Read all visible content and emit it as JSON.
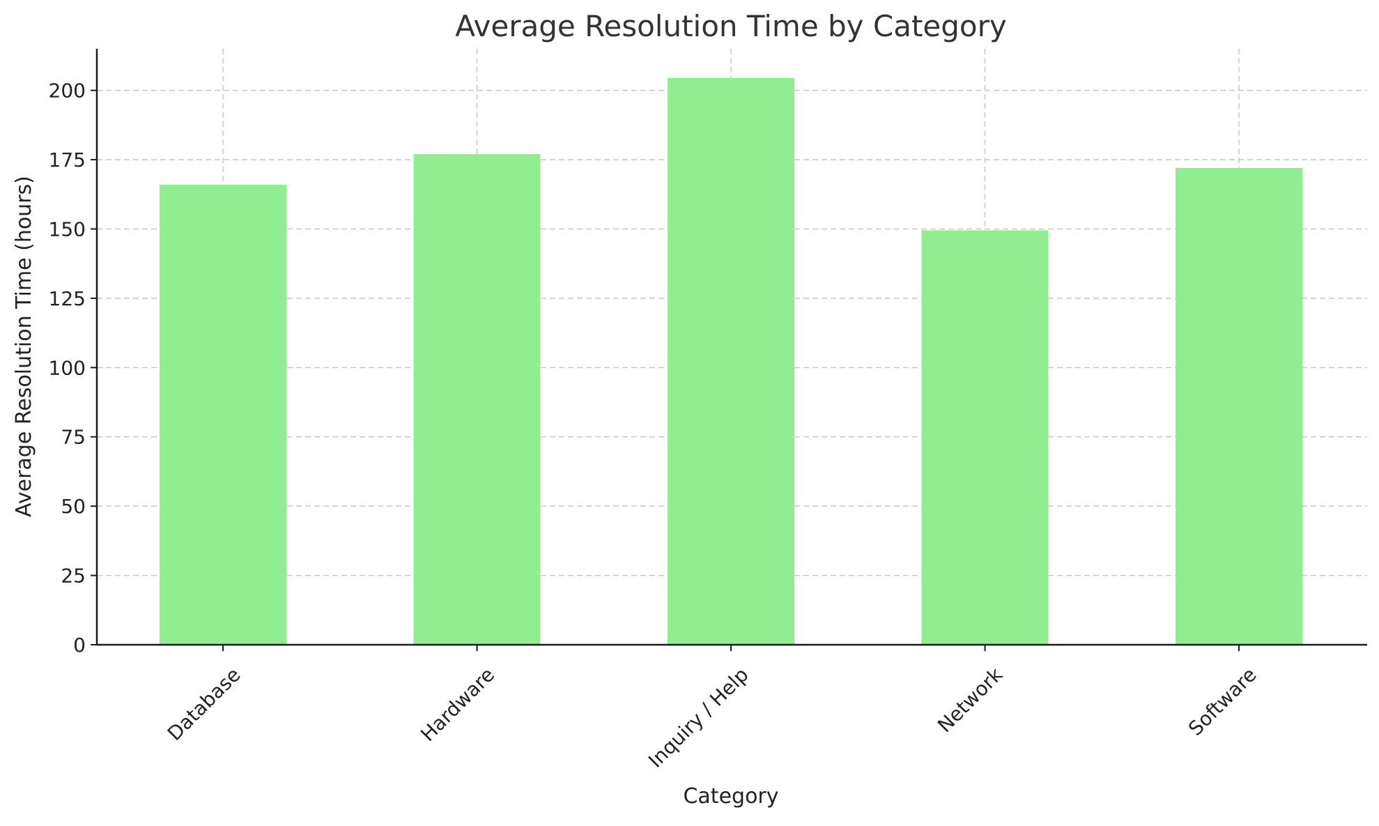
{
  "chart_data": {
    "type": "bar",
    "title": "Average Resolution Time by Category",
    "xlabel": "Category",
    "ylabel": "Average Resolution Time (hours)",
    "categories": [
      "Database",
      "Hardware",
      "Inquiry / Help",
      "Network",
      "Software"
    ],
    "values": [
      166,
      177,
      204.5,
      149.5,
      172
    ],
    "ylim": [
      0,
      215
    ],
    "yticks": [
      0,
      25,
      50,
      75,
      100,
      125,
      150,
      175,
      200
    ],
    "grid": true,
    "bar_color": "#90ee90"
  }
}
